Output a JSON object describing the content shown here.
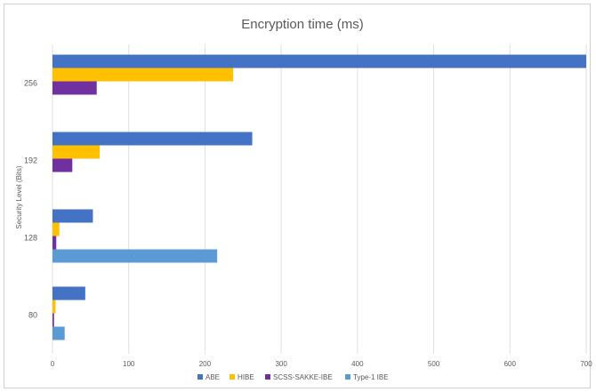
{
  "chart_data": {
    "type": "bar",
    "orientation": "horizontal",
    "title": "Encryption time (ms)",
    "xlabel": "",
    "ylabel": "Security Level (Bits)",
    "categories": [
      "256",
      "192",
      "128",
      "80"
    ],
    "xlim": [
      0,
      700
    ],
    "xticks": [
      0,
      100,
      200,
      300,
      400,
      500,
      600,
      700
    ],
    "grid": true,
    "legend_position": "bottom",
    "series": [
      {
        "name": "ABE",
        "color": "#4472C4",
        "values": [
          700,
          262,
          53,
          43
        ]
      },
      {
        "name": "HIBE",
        "color": "#FFC000",
        "values": [
          237,
          62,
          9,
          4
        ]
      },
      {
        "name": "SCSS-SAKKE-IBE",
        "color": "#7030A0",
        "values": [
          58,
          26,
          5,
          2
        ]
      },
      {
        "name": "Type-1 IBE",
        "color": "#5B9BD5",
        "values": [
          0,
          0,
          216,
          16
        ]
      }
    ]
  }
}
